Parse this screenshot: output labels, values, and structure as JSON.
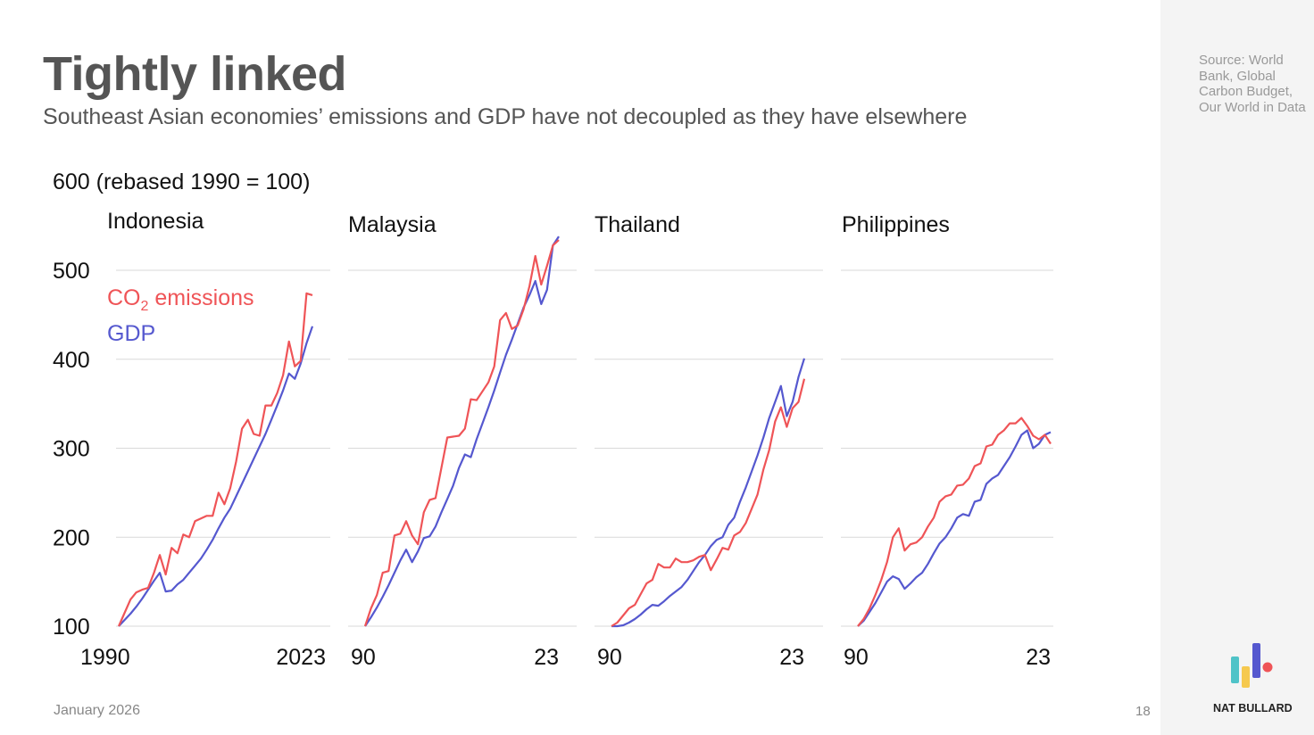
{
  "header": {
    "title": "Tightly linked",
    "subtitle": "Southeast Asian economies’ emissions and GDP have not decoupled as they have elsewhere"
  },
  "source": "Source: World Bank, Global Carbon Budget, Our World in Data",
  "footer": {
    "date": "January 2026",
    "page": "18",
    "brand": "NAT BULLARD"
  },
  "colors": {
    "co2": "#ef5457",
    "gdp": "#5558cf",
    "grid": "#d9d9d9"
  },
  "chart_data": {
    "type": "line",
    "ylabel": "600 (rebased 1990 = 100)",
    "ylim": [
      100,
      600
    ],
    "yticks": [
      100,
      200,
      300,
      400,
      500
    ],
    "years": [
      1990,
      2023
    ],
    "legend": {
      "co2_prefix": "CO",
      "co2_sub": "2",
      "co2_suffix": " emissions",
      "gdp": "GDP"
    },
    "panels": [
      {
        "name": "Indonesia",
        "xticks": [
          "1990",
          "2023"
        ],
        "series": [
          {
            "name": "CO2 emissions",
            "values": [
              100,
              115,
              130,
              138,
              141,
              143,
              160,
              180,
              158,
              188,
              182,
              203,
              200,
              218,
              221,
              224,
              224,
              250,
              237,
              255,
              285,
              322,
              332,
              316,
              314,
              348,
              348,
              362,
              382,
              420,
              392,
              398,
              474,
              472
            ]
          },
          {
            "name": "GDP",
            "values": [
              100,
              107,
              114,
              122,
              131,
              141,
              151,
              160,
              139,
              140,
              147,
              152,
              160,
              168,
              176,
              186,
              197,
              210,
              222,
              232,
              246,
              260,
              274,
              288,
              302,
              316,
              332,
              348,
              365,
              384,
              378,
              395,
              418,
              437
            ]
          }
        ]
      },
      {
        "name": "Malaysia",
        "xticks": [
          "90",
          "23"
        ],
        "series": [
          {
            "name": "CO2 emissions",
            "values": [
              100,
              120,
              135,
              160,
              162,
              202,
              204,
              218,
              202,
              192,
              228,
              242,
              244,
              278,
              312,
              313,
              314,
              322,
              355,
              354,
              364,
              374,
              392,
              444,
              452,
              434,
              438,
              456,
              482,
              516,
              484,
              505,
              528,
              534
            ]
          },
          {
            "name": "GDP",
            "values": [
              100,
              110,
              121,
              133,
              146,
              160,
              174,
              186,
              172,
              184,
              199,
              201,
              212,
              228,
              243,
              258,
              278,
              293,
              290,
              310,
              328,
              346,
              365,
              385,
              405,
              422,
              440,
              458,
              472,
              488,
              462,
              478,
              528,
              538
            ]
          }
        ]
      },
      {
        "name": "Thailand",
        "xticks": [
          "90",
          "23"
        ],
        "series": [
          {
            "name": "CO2 emissions",
            "values": [
              100,
              104,
              112,
              120,
              124,
              136,
              148,
              152,
              170,
              166,
              166,
              176,
              172,
              172,
              174,
              178,
              180,
              163,
              175,
              188,
              186,
              202,
              206,
              216,
              232,
              248,
              276,
              298,
              330,
              346,
              324,
              345,
              352,
              378
            ]
          },
          {
            "name": "GDP",
            "values": [
              100,
              100,
              101,
              104,
              108,
              113,
              119,
              124,
              123,
              128,
              134,
              139,
              144,
              152,
              162,
              172,
              180,
              190,
              197,
              200,
              214,
              222,
              240,
              256,
              274,
              292,
              312,
              334,
              352,
              370,
              336,
              352,
              380,
              401
            ]
          }
        ]
      },
      {
        "name": "Philippines",
        "xticks": [
          "90",
          "23"
        ],
        "series": [
          {
            "name": "CO2 emissions",
            "values": [
              100,
              108,
              120,
              135,
              152,
              172,
              200,
              210,
              185,
              192,
              194,
              200,
              212,
              222,
              240,
              246,
              248,
              258,
              259,
              266,
              280,
              283,
              302,
              304,
              315,
              320,
              328,
              328,
              334,
              325,
              314,
              310,
              315,
              305
            ]
          },
          {
            "name": "GDP",
            "values": [
              100,
              106,
              116,
              126,
              138,
              150,
              156,
              153,
              142,
              148,
              155,
              160,
              170,
              182,
              193,
              200,
              210,
              222,
              226,
              224,
              240,
              242,
              260,
              266,
              270,
              280,
              290,
              302,
              315,
              320,
              300,
              305,
              315,
              318
            ]
          }
        ]
      }
    ]
  }
}
